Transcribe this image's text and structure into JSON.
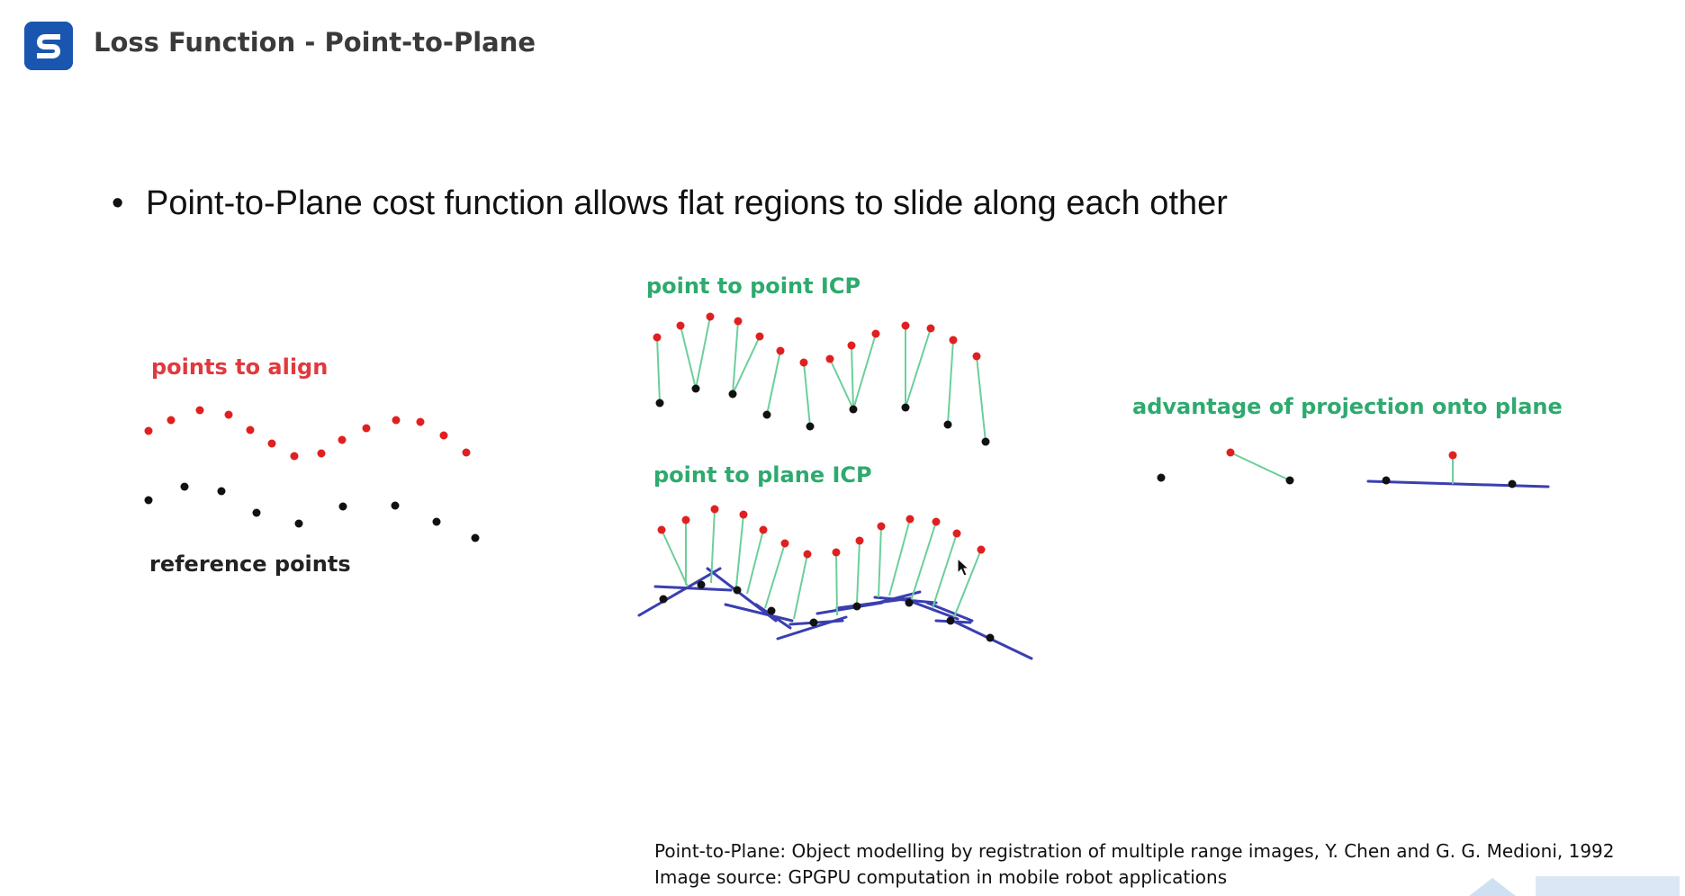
{
  "header": {
    "title": "Loss Function - Point-to-Plane",
    "brand_color": "#1a56b0"
  },
  "bullet": {
    "symbol": "•",
    "text": "Point-to-Plane cost function allows flat regions to slide along each other"
  },
  "figure": {
    "colors": {
      "points_to_align": "#e02020",
      "reference_points": "#111111",
      "correspondence_lines": "#6ccf9a",
      "planes": "#3a3fb0",
      "green_labels": "#2eaa6e",
      "red_labels": "#e0393e"
    },
    "labels": {
      "points_to_align": "points to align",
      "reference_points": "reference points",
      "point_to_point": "point to point ICP",
      "point_to_plane": "point to plane ICP",
      "advantage": "advantage of projection onto plane"
    }
  },
  "references": {
    "line1": "Point-to-Plane: Object modelling by registration of multiple range images, Y. Chen and G. G. Medioni, 1992",
    "line2": "Image source: GPGPU computation in mobile robot applications"
  }
}
